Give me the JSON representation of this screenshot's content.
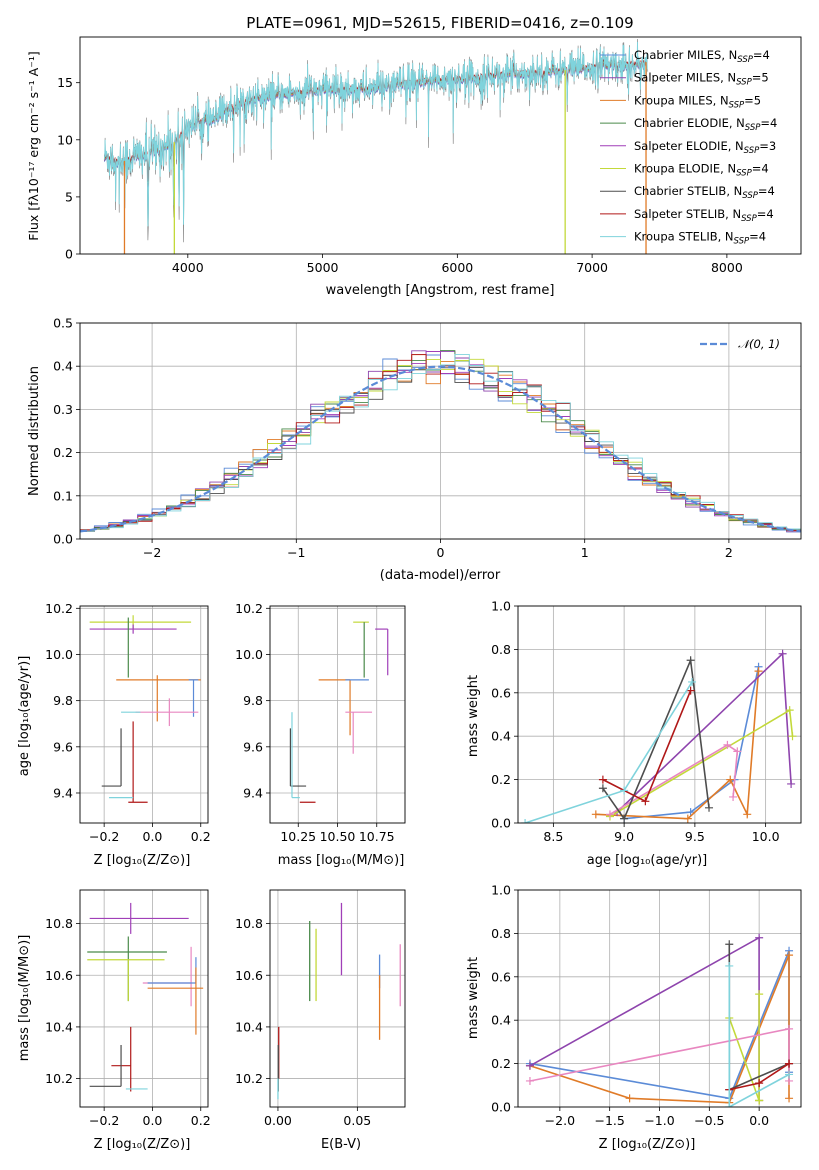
{
  "chart_data": [
    {
      "id": "spectrum",
      "type": "line",
      "title": "PLATE=0961, MJD=52615, FIBERID=0416, z=0.109",
      "xlabel": "wavelength [Angstrom, rest frame]",
      "ylabel": "Flux [fλ10⁻¹⁷ erg cm⁻² s⁻¹ A⁻¹]",
      "xlim": [
        3200,
        8550
      ],
      "ylim": [
        0,
        19
      ],
      "xticks": [
        4000,
        5000,
        6000,
        7000,
        8000
      ],
      "yticks": [
        0,
        5,
        10,
        15
      ],
      "grid": false,
      "legend_placement": "upper-right",
      "series": [
        {
          "name": "Chabrier MILES, N_SSP=4",
          "color": "#5b8bd7"
        },
        {
          "name": "Salpeter MILES, N_SSP=5",
          "color": "#8e44ad"
        },
        {
          "name": "Kroupa MILES, N_SSP=5",
          "color": "#e07b28"
        },
        {
          "name": "Chabrier ELODIE, N_SSP=4",
          "color": "#4a8a4a"
        },
        {
          "name": "Salpeter ELODIE, N_SSP=3",
          "color": "#a03fb8"
        },
        {
          "name": "Kroupa ELODIE, N_SSP=4",
          "color": "#c3d93a"
        },
        {
          "name": "Chabrier STELIB, N_SSP=4",
          "color": "#4d4d4d"
        },
        {
          "name": "Salpeter STELIB, N_SSP=4",
          "color": "#b01818"
        },
        {
          "name": "Kroupa STELIB, N_SSP=4",
          "color": "#7fd3dc"
        }
      ],
      "observed_color": "#777777",
      "continuum_nodes": {
        "x": [
          3400,
          3500,
          3600,
          3700,
          3800,
          3900,
          4000,
          4100,
          4200,
          4300,
          4400,
          4500,
          4700,
          4900,
          5100,
          5300,
          5500,
          5700,
          5900,
          6100,
          6300,
          6500,
          6700,
          6900,
          7100,
          7300,
          7400
        ],
        "y": [
          8.5,
          8.0,
          8.5,
          8.8,
          9.2,
          9.8,
          11.2,
          11.6,
          11.8,
          12.8,
          13.3,
          13.6,
          14.0,
          14.3,
          14.5,
          14.4,
          14.8,
          15.0,
          15.3,
          15.4,
          15.7,
          15.8,
          16.0,
          16.2,
          16.5,
          16.6,
          16.8
        ]
      },
      "data_range": [
        3380,
        7410
      ],
      "absorption_dips": [
        {
          "x": 3705,
          "y": 0
        },
        {
          "x": 3895,
          "y": 2
        },
        {
          "x": 3935,
          "y": 3
        },
        {
          "x": 3970,
          "y": 3.5
        },
        {
          "x": 4102,
          "y": 7
        },
        {
          "x": 4340,
          "y": 8
        },
        {
          "x": 4861,
          "y": 11
        }
      ],
      "model_drops": [
        {
          "x": 3530,
          "color": "#e07b28"
        },
        {
          "x": 3900,
          "color": "#c3d93a"
        },
        {
          "x": 6800,
          "color": "#c3d93a"
        },
        {
          "x": 7400,
          "color": "#e07b28"
        }
      ]
    },
    {
      "id": "residuals",
      "type": "histogram",
      "xlabel": "(data-model)/error",
      "ylabel": "Normed distribution",
      "xlim": [
        -2.5,
        2.5
      ],
      "ylim": [
        0,
        0.5
      ],
      "xticks": [
        -2,
        -1,
        0,
        1,
        2
      ],
      "yticks": [
        0.0,
        0.1,
        0.2,
        0.3,
        0.4,
        0.5
      ],
      "grid": true,
      "legend_placement": "upper-right",
      "reference_label": "𝒩(0, 1)",
      "reference_color": "#5b8bd7",
      "bin_width": 0.1
    },
    {
      "id": "age-vs-Z",
      "type": "scatter",
      "xlabel": "Z [log₁₀(Z/Z⊙)]",
      "ylabel": "age  [log₁₀(age/yr)]",
      "xlim": [
        -0.3,
        0.23
      ],
      "ylim": [
        9.27,
        10.21
      ],
      "xticks": [
        -0.2,
        0.0,
        0.2
      ],
      "yticks": [
        9.4,
        9.6,
        9.8,
        10.0,
        10.2
      ],
      "grid": true,
      "points": [
        {
          "color": "#c3d93a",
          "x": -0.08,
          "xerr": [
            0.18,
            0.24
          ],
          "y": 10.14,
          "yerr": [
            0.03,
            0.03
          ]
        },
        {
          "color": "#a03fb8",
          "x": -0.08,
          "xerr": [
            0.18,
            0.18
          ],
          "y": 10.11,
          "yerr": [
            0.02,
            0.02
          ]
        },
        {
          "color": "#4a8a4a",
          "x": -0.1,
          "xerr": [
            0.0,
            0.0
          ],
          "y": 10.14,
          "yerr": [
            0.24,
            0.02
          ]
        },
        {
          "color": "#e07b28",
          "x": 0.02,
          "xerr": [
            0.17,
            0.18
          ],
          "y": 9.89,
          "yerr": [
            0.18,
            0.02
          ]
        },
        {
          "color": "#5b8bd7",
          "x": 0.17,
          "xerr": [
            0.02,
            0.02
          ],
          "y": 9.89,
          "yerr": [
            0.16,
            0.0
          ]
        },
        {
          "color": "#e887c0",
          "x": 0.07,
          "xerr": [
            0.14,
            0.12
          ],
          "y": 9.75,
          "yerr": [
            0.06,
            0.06
          ]
        },
        {
          "color": "#7fd3dc",
          "x": -0.09,
          "xerr": [
            0.04,
            0.04
          ],
          "y": 9.75,
          "yerr": [
            0.0,
            0.0
          ]
        },
        {
          "color": "#4d4d4d",
          "x": -0.13,
          "xerr": [
            0.08,
            0.0
          ],
          "y": 9.43,
          "yerr": [
            0.0,
            0.25
          ]
        },
        {
          "color": "#b01818",
          "x": -0.08,
          "xerr": [
            0.02,
            0.06
          ],
          "y": 9.36,
          "yerr": [
            0.0,
            0.35
          ]
        },
        {
          "color": "#7fd3dc",
          "x": -0.12,
          "xerr": [
            0.06,
            0.04
          ],
          "y": 9.38,
          "yerr": [
            0.0,
            0.0
          ]
        }
      ]
    },
    {
      "id": "age-vs-mass",
      "type": "scatter",
      "xlabel": "mass [log₁₀(M/M⊙)]",
      "ylabel": "",
      "xlim": [
        10.07,
        10.93
      ],
      "ylim": [
        9.27,
        10.21
      ],
      "xticks": [
        10.25,
        10.5,
        10.75
      ],
      "yticks": [
        9.4,
        9.6,
        9.8,
        10.0,
        10.2
      ],
      "grid": true,
      "points": [
        {
          "color": "#c3d93a",
          "x": 10.7,
          "xerr": [
            0.1,
            0.0
          ],
          "y": 10.14,
          "yerr": [
            0.0,
            0.0
          ]
        },
        {
          "color": "#a03fb8",
          "x": 10.82,
          "xerr": [
            0.08,
            0.0
          ],
          "y": 10.11,
          "yerr": [
            0.2,
            0.0
          ]
        },
        {
          "color": "#4a8a4a",
          "x": 10.67,
          "xerr": [
            0.0,
            0.0
          ],
          "y": 10.14,
          "yerr": [
            0.24,
            0.0
          ]
        },
        {
          "color": "#e07b28",
          "x": 10.58,
          "xerr": [
            0.2,
            0.0
          ],
          "y": 9.89,
          "yerr": [
            0.24,
            0.0
          ]
        },
        {
          "color": "#5b8bd7",
          "x": 10.55,
          "xerr": [
            0.0,
            0.15
          ],
          "y": 9.89,
          "yerr": [
            0.0,
            0.0
          ]
        },
        {
          "color": "#e887c0",
          "x": 10.6,
          "xerr": [
            0.05,
            0.12
          ],
          "y": 9.75,
          "yerr": [
            0.18,
            0.0
          ]
        },
        {
          "color": "#4d4d4d",
          "x": 10.2,
          "xerr": [
            0.0,
            0.1
          ],
          "y": 9.43,
          "yerr": [
            0.0,
            0.25
          ]
        },
        {
          "color": "#7fd3dc",
          "x": 10.21,
          "xerr": [
            0.0,
            0.05
          ],
          "y": 9.38,
          "yerr": [
            0.0,
            0.37
          ]
        },
        {
          "color": "#b01818",
          "x": 10.26,
          "xerr": [
            0.0,
            0.1
          ],
          "y": 9.36,
          "yerr": [
            0.0,
            0.0
          ]
        }
      ]
    },
    {
      "id": "weight-vs-age",
      "type": "line",
      "xlabel": "age  [log₁₀(age/yr)]",
      "ylabel": "mass weight",
      "xlim": [
        8.25,
        10.25
      ],
      "ylim": [
        0,
        1
      ],
      "xticks": [
        8.5,
        9.0,
        9.5,
        10.0
      ],
      "yticks": [
        0.0,
        0.2,
        0.4,
        0.6,
        0.8,
        1.0
      ],
      "grid": true,
      "series": [
        {
          "color": "#5b8bd7",
          "x": [
            9.0,
            9.47,
            9.78,
            9.95
          ],
          "y": [
            0.02,
            0.05,
            0.2,
            0.72
          ]
        },
        {
          "color": "#e07b28",
          "x": [
            8.8,
            9.45,
            9.75,
            9.87,
            9.95
          ],
          "y": [
            0.04,
            0.02,
            0.2,
            0.04,
            0.7
          ]
        },
        {
          "color": "#8e44ad",
          "x": [
            8.95,
            10.12,
            10.18
          ],
          "y": [
            0.05,
            0.78,
            0.18
          ]
        },
        {
          "color": "#c3d93a",
          "x": [
            8.9,
            10.17,
            10.19
          ],
          "y": [
            0.03,
            0.52,
            0.4
          ]
        },
        {
          "color": "#e887c0",
          "x": [
            8.9,
            9.73,
            9.8,
            9.77
          ],
          "y": [
            0.04,
            0.36,
            0.33,
            0.12
          ]
        },
        {
          "color": "#4d4d4d",
          "x": [
            8.85,
            9.0,
            9.47,
            9.6
          ],
          "y": [
            0.16,
            0.02,
            0.75,
            0.07
          ]
        },
        {
          "color": "#b01818",
          "x": [
            8.85,
            9.15,
            9.47
          ],
          "y": [
            0.2,
            0.1,
            0.61
          ]
        },
        {
          "color": "#7fd3dc",
          "x": [
            8.3,
            9.0,
            9.48
          ],
          "y": [
            0.0,
            0.15,
            0.65
          ]
        }
      ]
    },
    {
      "id": "mass-vs-Z",
      "type": "scatter",
      "xlabel": "Z [log₁₀(Z/Z⊙)]",
      "ylabel": "mass [log₁₀(M/M⊙)]",
      "xlim": [
        -0.3,
        0.23
      ],
      "ylim": [
        10.09,
        10.93
      ],
      "xticks": [
        -0.2,
        0.0,
        0.2
      ],
      "yticks": [
        10.2,
        10.4,
        10.6,
        10.8
      ],
      "grid": true,
      "points": [
        {
          "color": "#a03fb8",
          "x": -0.09,
          "xerr": [
            0.17,
            0.24
          ],
          "y": 10.82,
          "yerr": [
            0.06,
            0.06
          ]
        },
        {
          "color": "#4a8a4a",
          "x": -0.1,
          "xerr": [
            0.17,
            0.16
          ],
          "y": 10.69,
          "yerr": [
            0.19,
            0.06
          ]
        },
        {
          "color": "#c3d93a",
          "x": -0.1,
          "xerr": [
            0.17,
            0.15
          ],
          "y": 10.66,
          "yerr": [
            0.16,
            0.0
          ]
        },
        {
          "color": "#e887c0",
          "x": 0.16,
          "xerr": [
            0.2,
            0.0
          ],
          "y": 10.57,
          "yerr": [
            0.09,
            0.14
          ]
        },
        {
          "color": "#5b8bd7",
          "x": 0.18,
          "xerr": [
            0.2,
            0.0
          ],
          "y": 10.57,
          "yerr": [
            0.0,
            0.1
          ]
        },
        {
          "color": "#e07b28",
          "x": 0.18,
          "xerr": [
            0.2,
            0.03
          ],
          "y": 10.55,
          "yerr": [
            0.18,
            0.08
          ]
        },
        {
          "color": "#b01818",
          "x": -0.09,
          "xerr": [
            0.08,
            0.0
          ],
          "y": 10.25,
          "yerr": [
            0.1,
            0.15
          ]
        },
        {
          "color": "#4d4d4d",
          "x": -0.13,
          "xerr": [
            0.13,
            0.0
          ],
          "y": 10.17,
          "yerr": [
            0.0,
            0.16
          ]
        },
        {
          "color": "#7fd3dc",
          "x": -0.11,
          "xerr": [
            0.0,
            0.09
          ],
          "y": 10.16,
          "yerr": [
            0.0,
            0.0
          ]
        }
      ]
    },
    {
      "id": "mass-vs-EBV",
      "type": "scatter",
      "xlabel": "E(B-V)",
      "ylabel": "",
      "xlim": [
        -0.005,
        0.08
      ],
      "ylim": [
        10.09,
        10.93
      ],
      "xticks": [
        0.0,
        0.05
      ],
      "yticks": [
        10.2,
        10.4,
        10.6,
        10.8
      ],
      "grid": true,
      "segments": [
        {
          "color": "#a03fb8",
          "x": 0.04,
          "y0": 10.6,
          "y1": 10.88
        },
        {
          "color": "#4a8a4a",
          "x": 0.02,
          "y0": 10.5,
          "y1": 10.81
        },
        {
          "color": "#c3d93a",
          "x": 0.024,
          "y0": 10.5,
          "y1": 10.78
        },
        {
          "color": "#5b8bd7",
          "x": 0.064,
          "y0": 10.55,
          "y1": 10.68
        },
        {
          "color": "#e07b28",
          "x": 0.064,
          "y0": 10.35,
          "y1": 10.6
        },
        {
          "color": "#e887c0",
          "x": 0.077,
          "y0": 10.48,
          "y1": 10.72
        },
        {
          "color": "#b01818",
          "x": 0.0005,
          "y0": 10.2,
          "y1": 10.4
        },
        {
          "color": "#4d4d4d",
          "x": 0.0002,
          "y0": 10.15,
          "y1": 10.33
        },
        {
          "color": "#7fd3dc",
          "x": 0.0,
          "y0": 10.12,
          "y1": 10.2
        }
      ]
    },
    {
      "id": "weight-vs-Z",
      "type": "line",
      "xlabel": "Z [log₁₀(Z/Z⊙)]",
      "ylabel": "mass weight",
      "xlim": [
        -2.42,
        0.42
      ],
      "ylim": [
        0,
        1
      ],
      "xticks": [
        -2.0,
        -1.5,
        -1.0,
        -0.5,
        0.0
      ],
      "yticks": [
        0.0,
        0.2,
        0.4,
        0.6,
        0.8,
        1.0
      ],
      "grid": true,
      "series": [
        {
          "color": "#5b8bd7",
          "x": [
            -2.3,
            -0.3,
            0.3,
            0.3
          ],
          "y": [
            0.2,
            0.04,
            0.72,
            0.16
          ]
        },
        {
          "color": "#e07b28",
          "x": [
            -2.3,
            -1.3,
            -0.3,
            0.3,
            0.3
          ],
          "y": [
            0.19,
            0.04,
            0.02,
            0.7,
            0.04
          ]
        },
        {
          "color": "#8e44ad",
          "x": [
            -2.3,
            0.0,
            0.0
          ],
          "y": [
            0.19,
            0.78,
            0.03
          ]
        },
        {
          "color": "#c3d93a",
          "x": [
            -0.3,
            0.0,
            0.0,
            0.0
          ],
          "y": [
            0.41,
            0.03,
            0.52,
            0.03
          ]
        },
        {
          "color": "#e887c0",
          "x": [
            -2.3,
            0.3,
            0.3
          ],
          "y": [
            0.12,
            0.36,
            0.12
          ]
        },
        {
          "color": "#4d4d4d",
          "x": [
            -0.3,
            -0.3,
            0.3
          ],
          "y": [
            0.75,
            0.08,
            0.2
          ]
        },
        {
          "color": "#b01818",
          "x": [
            -0.3,
            0.0,
            0.3
          ],
          "y": [
            0.08,
            0.11,
            0.2
          ]
        },
        {
          "color": "#7fd3dc",
          "x": [
            -0.3,
            -0.3,
            0.3
          ],
          "y": [
            0.65,
            0.0,
            0.15
          ]
        }
      ]
    }
  ]
}
